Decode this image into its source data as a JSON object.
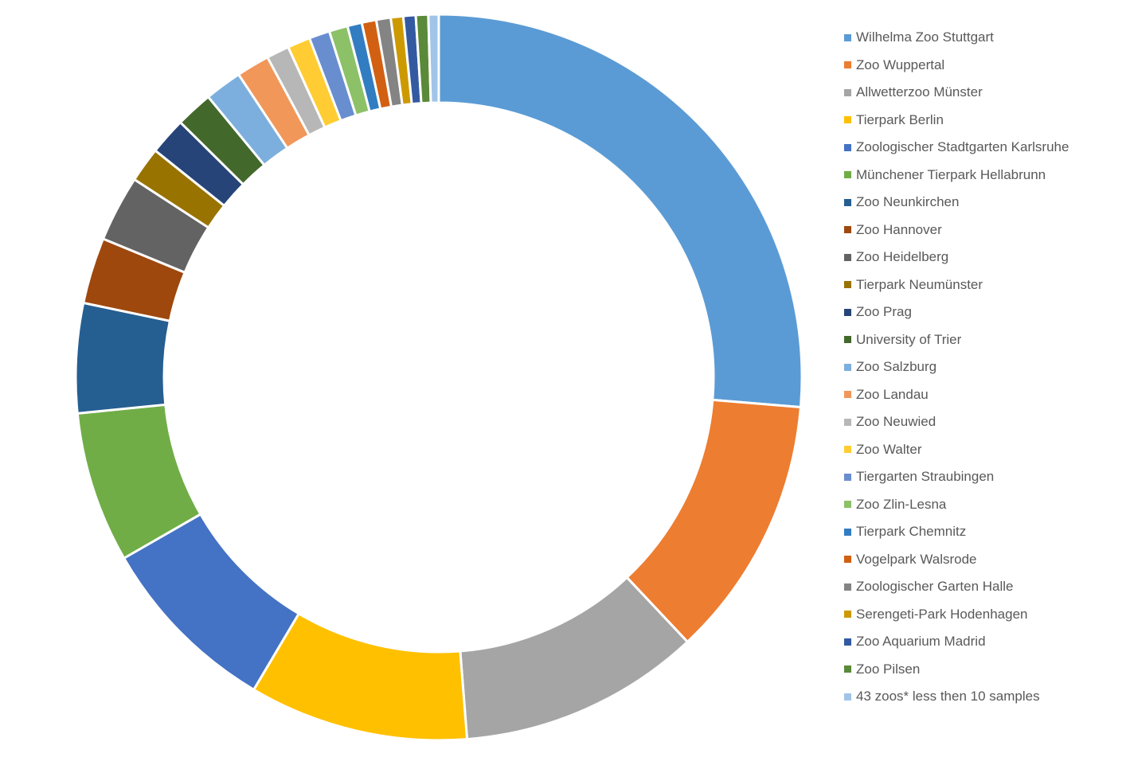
{
  "chart_data": {
    "type": "pie",
    "variant": "donut",
    "title": "",
    "legend_position": "right",
    "categories": [
      "Wilhelma Zoo Stuttgart",
      "Zoo Wuppertal",
      "Allwetterzoo Münster",
      "Tierpark Berlin",
      "Zoologischer Stadtgarten Karlsruhe",
      "Münchener Tierpark Hellabrunn",
      "Zoo Neunkirchen",
      "Zoo Hannover",
      "Zoo Heidelberg",
      "Tierpark Neumünster",
      "Zoo Prag",
      "University of Trier",
      "Zoo Salzburg",
      "Zoo Landau",
      "Zoo Neuwied",
      "Zoo Walter",
      "Tiergarten Straubingen",
      "Zoo Zlin-Lesna",
      "Tierpark Chemnitz",
      "Vogelpark Walsrode",
      "Zoologischer Garten Halle",
      "Serengeti-Park Hodenhagen",
      "Zoo Aquarium Madrid",
      "Zoo Pilsen",
      "43 zoos* less then 10 samples"
    ],
    "values": [
      28.6,
      12.7,
      11.7,
      10.6,
      8.9,
      7.3,
      5.3,
      3.2,
      3.2,
      1.7,
      1.8,
      1.8,
      1.8,
      1.6,
      1.1,
      1.1,
      1.0,
      0.9,
      0.7,
      0.7,
      0.7,
      0.6,
      0.6,
      0.6,
      0.5
    ],
    "colors": [
      "#5B9BD5",
      "#ED7D31",
      "#A5A5A5",
      "#FFC000",
      "#4472C4",
      "#70AD47",
      "#255E91",
      "#9E480E",
      "#636363",
      "#997300",
      "#264478",
      "#43682B",
      "#7CAFDD",
      "#F1975A",
      "#B7B7B7",
      "#FFCD33",
      "#698ED0",
      "#8CC168",
      "#327DC2",
      "#D26012",
      "#848484",
      "#CC9A00",
      "#335AA1",
      "#5A8A39",
      "#A2C4E8"
    ]
  }
}
